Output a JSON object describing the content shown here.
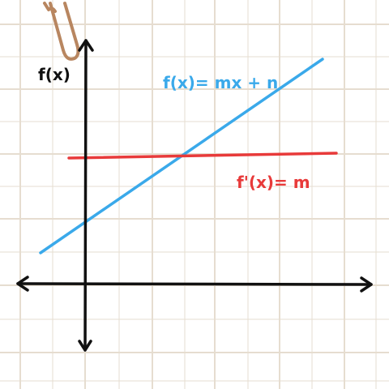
{
  "labels": {
    "y_axis": "f(x)",
    "function": "f(x)= mx + n",
    "derivative": "f'(x)= m"
  },
  "colors": {
    "background": "#ffffff",
    "grid": "#e6ddd0",
    "axes": "#111111",
    "function_line": "#3aa9ea",
    "derivative_line": "#e83a3a",
    "function_text": "#3aa9ea",
    "derivative_text": "#e83a3a",
    "paperclip": "#b88660"
  },
  "icons": {
    "paperclip": "paperclip-icon"
  }
}
